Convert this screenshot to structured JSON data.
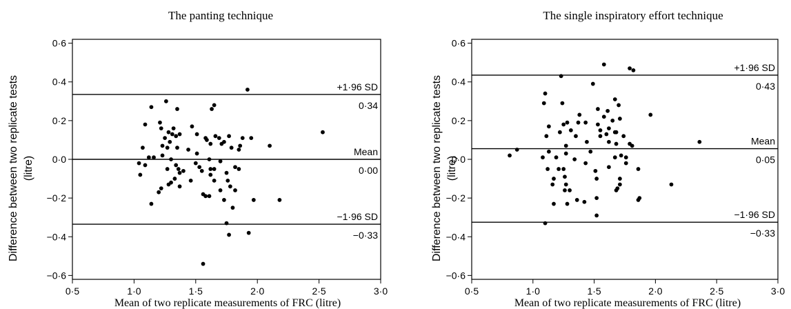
{
  "chart_data": [
    {
      "type": "scatter",
      "title": "The panting technique",
      "xlabel": "Mean of two replicate measurements of FRC (litre)",
      "ylabel": "Difference between two replicate tests",
      "ylabel_unit": "(litre)",
      "xlim": [
        0.5,
        3.0
      ],
      "ylim": [
        -0.62,
        0.62
      ],
      "xticks": [
        0.5,
        1.0,
        1.5,
        2.0,
        2.5,
        3.0
      ],
      "xtick_labels": [
        "0·5",
        "1·0",
        "1·5",
        "2·0",
        "2·5",
        "3·0"
      ],
      "yticks": [
        0.6,
        0.4,
        0.2,
        0.0,
        -0.2,
        -0.4,
        -0.6
      ],
      "ytick_labels": [
        "0·6",
        "0·4",
        "0·2",
        "0·0",
        "−0·2",
        "−0·4",
        "−0·6"
      ],
      "reference_lines": [
        {
          "y": 0.335,
          "label": "+1·96 SD",
          "value_label": "0·34"
        },
        {
          "y": 0.0,
          "label": "Mean",
          "value_label": "0·00"
        },
        {
          "y": -0.335,
          "label": "−1·96 SD",
          "value_label": "−0·33"
        }
      ],
      "points": [
        [
          1.09,
          0.18
        ],
        [
          1.14,
          0.27
        ],
        [
          1.21,
          0.19
        ],
        [
          1.26,
          0.3
        ],
        [
          1.35,
          0.26
        ],
        [
          1.63,
          0.26
        ],
        [
          1.65,
          0.28
        ],
        [
          1.92,
          0.36
        ],
        [
          2.53,
          0.14
        ],
        [
          1.28,
          0.14
        ],
        [
          1.31,
          0.13
        ],
        [
          1.34,
          0.12
        ],
        [
          1.37,
          0.13
        ],
        [
          1.25,
          0.11
        ],
        [
          1.29,
          0.09
        ],
        [
          1.35,
          0.06
        ],
        [
          1.47,
          0.17
        ],
        [
          1.51,
          0.13
        ],
        [
          1.22,
          0.16
        ],
        [
          1.23,
          0.07
        ],
        [
          1.27,
          0.06
        ],
        [
          1.32,
          0.16
        ],
        [
          1.59,
          0.1
        ],
        [
          1.62,
          0.08
        ],
        [
          1.71,
          0.08
        ],
        [
          1.77,
          0.12
        ],
        [
          1.69,
          0.11
        ],
        [
          1.86,
          0.07
        ],
        [
          1.88,
          0.11
        ],
        [
          1.95,
          0.11
        ],
        [
          2.1,
          0.07
        ],
        [
          1.58,
          0.11
        ],
        [
          1.66,
          0.12
        ],
        [
          1.73,
          0.09
        ],
        [
          1.79,
          0.06
        ],
        [
          1.85,
          0.05
        ],
        [
          1.07,
          0.06
        ],
        [
          1.16,
          0.01
        ],
        [
          1.12,
          0.01
        ],
        [
          1.23,
          0.02
        ],
        [
          1.3,
          0.0
        ],
        [
          1.27,
          -0.05
        ],
        [
          1.4,
          -0.06
        ],
        [
          1.44,
          0.05
        ],
        [
          1.51,
          0.03
        ],
        [
          1.61,
          0.0
        ],
        [
          1.04,
          -0.02
        ],
        [
          1.09,
          -0.03
        ],
        [
          1.05,
          -0.08
        ],
        [
          1.34,
          -0.03
        ],
        [
          1.36,
          -0.05
        ],
        [
          1.37,
          -0.07
        ],
        [
          1.5,
          -0.02
        ],
        [
          1.53,
          -0.04
        ],
        [
          1.55,
          -0.06
        ],
        [
          1.62,
          -0.08
        ],
        [
          1.65,
          -0.05
        ],
        [
          1.75,
          -0.07
        ],
        [
          1.82,
          -0.04
        ],
        [
          1.85,
          -0.05
        ],
        [
          1.33,
          -0.1
        ],
        [
          1.28,
          -0.13
        ],
        [
          1.22,
          -0.15
        ],
        [
          1.2,
          -0.17
        ],
        [
          1.3,
          -0.12
        ],
        [
          1.37,
          -0.14
        ],
        [
          1.46,
          -0.11
        ],
        [
          1.65,
          -0.11
        ],
        [
          1.78,
          -0.14
        ],
        [
          1.7,
          -0.16
        ],
        [
          1.73,
          -0.21
        ],
        [
          1.82,
          -0.16
        ],
        [
          1.58,
          -0.19
        ],
        [
          1.61,
          -0.19
        ],
        [
          1.56,
          -0.18
        ],
        [
          1.14,
          -0.23
        ],
        [
          1.8,
          -0.25
        ],
        [
          2.18,
          -0.21
        ],
        [
          1.97,
          -0.21
        ],
        [
          1.75,
          -0.33
        ],
        [
          1.77,
          -0.39
        ],
        [
          1.93,
          -0.38
        ],
        [
          1.56,
          -0.54
        ],
        [
          1.62,
          -0.05
        ],
        [
          1.7,
          -0.01
        ],
        [
          1.76,
          -0.11
        ]
      ]
    },
    {
      "type": "scatter",
      "title": "The single inspiratory effort technique",
      "xlabel": "Mean of two replicate measurements of FRC (litre)",
      "ylabel": "Difference between two replicate tests",
      "ylabel_unit": "(litre)",
      "xlim": [
        0.5,
        3.0
      ],
      "ylim": [
        -0.62,
        0.62
      ],
      "xticks": [
        0.5,
        1.0,
        1.5,
        2.0,
        2.5,
        3.0
      ],
      "xtick_labels": [
        "0·5",
        "1·0",
        "1·5",
        "2·0",
        "2·5",
        "3·0"
      ],
      "yticks": [
        0.6,
        0.4,
        0.2,
        0.0,
        -0.2,
        -0.4,
        -0.6
      ],
      "ytick_labels": [
        "0·6",
        "0·4",
        "0·2",
        "0·0",
        "−0·2",
        "−0·4",
        "−0·6"
      ],
      "reference_lines": [
        {
          "y": 0.435,
          "label": "+1·96 SD",
          "value_label": "0·43"
        },
        {
          "y": 0.055,
          "label": "Mean",
          "value_label": "0·05"
        },
        {
          "y": -0.325,
          "label": "−1·96 SD",
          "value_label": "−0·33"
        }
      ],
      "points": [
        [
          1.58,
          0.49
        ],
        [
          1.79,
          0.47
        ],
        [
          1.82,
          0.46
        ],
        [
          1.23,
          0.43
        ],
        [
          1.49,
          0.39
        ],
        [
          1.1,
          0.34
        ],
        [
          1.09,
          0.29
        ],
        [
          1.67,
          0.31
        ],
        [
          1.7,
          0.28
        ],
        [
          1.24,
          0.29
        ],
        [
          1.53,
          0.26
        ],
        [
          1.61,
          0.25
        ],
        [
          1.38,
          0.23
        ],
        [
          1.96,
          0.23
        ],
        [
          1.58,
          0.22
        ],
        [
          1.65,
          0.2
        ],
        [
          1.71,
          0.21
        ],
        [
          1.25,
          0.18
        ],
        [
          1.28,
          0.19
        ],
        [
          1.31,
          0.15
        ],
        [
          1.37,
          0.19
        ],
        [
          1.43,
          0.19
        ],
        [
          1.55,
          0.15
        ],
        [
          1.62,
          0.16
        ],
        [
          1.68,
          0.14
        ],
        [
          1.53,
          0.18
        ],
        [
          1.13,
          0.17
        ],
        [
          1.11,
          0.12
        ],
        [
          1.22,
          0.14
        ],
        [
          1.35,
          0.12
        ],
        [
          1.55,
          0.12
        ],
        [
          1.6,
          0.13
        ],
        [
          1.67,
          0.14
        ],
        [
          1.74,
          0.12
        ],
        [
          1.79,
          0.08
        ],
        [
          1.81,
          0.07
        ],
        [
          2.36,
          0.09
        ],
        [
          1.27,
          0.07
        ],
        [
          1.44,
          0.09
        ],
        [
          1.47,
          0.04
        ],
        [
          1.62,
          0.09
        ],
        [
          1.68,
          0.08
        ],
        [
          0.87,
          0.05
        ],
        [
          0.81,
          0.02
        ],
        [
          1.08,
          0.01
        ],
        [
          1.13,
          0.04
        ],
        [
          1.19,
          0.01
        ],
        [
          1.27,
          0.03
        ],
        [
          1.34,
          0.0
        ],
        [
          1.67,
          0.01
        ],
        [
          1.72,
          0.02
        ],
        [
          1.76,
          0.01
        ],
        [
          1.12,
          -0.05
        ],
        [
          1.21,
          -0.05
        ],
        [
          1.25,
          -0.05
        ],
        [
          1.43,
          -0.02
        ],
        [
          1.51,
          -0.06
        ],
        [
          1.62,
          -0.04
        ],
        [
          1.86,
          -0.05
        ],
        [
          1.76,
          -0.02
        ],
        [
          1.17,
          -0.1
        ],
        [
          1.26,
          -0.09
        ],
        [
          1.52,
          -0.1
        ],
        [
          1.3,
          -0.16
        ],
        [
          1.16,
          -0.13
        ],
        [
          1.27,
          -0.13
        ],
        [
          1.36,
          -0.21
        ],
        [
          1.42,
          -0.22
        ],
        [
          1.52,
          -0.2
        ],
        [
          1.71,
          -0.13
        ],
        [
          1.69,
          -0.15
        ],
        [
          1.68,
          -0.16
        ],
        [
          1.87,
          -0.2
        ],
        [
          1.86,
          -0.21
        ],
        [
          2.13,
          -0.13
        ],
        [
          1.26,
          -0.16
        ],
        [
          1.28,
          -0.23
        ],
        [
          1.17,
          -0.23
        ],
        [
          1.52,
          -0.29
        ],
        [
          1.1,
          -0.33
        ],
        [
          1.71,
          -0.1
        ]
      ]
    }
  ]
}
